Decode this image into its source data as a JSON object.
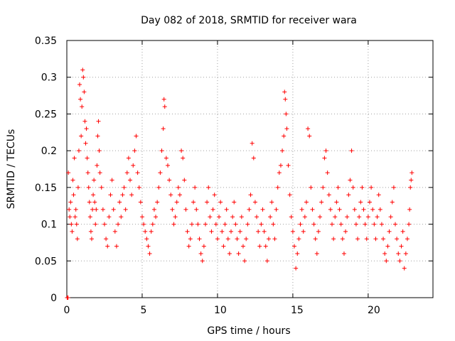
{
  "chart_data": {
    "type": "scatter",
    "title": "Day 082 of 2018, SRMTID for receiver wara",
    "xlabel": "GPS time / hours",
    "ylabel": "SRMTID / TECUs",
    "xlim": [
      0,
      24.3
    ],
    "ylim": [
      0,
      0.35
    ],
    "xticks": [
      0,
      5,
      10,
      15,
      20
    ],
    "xtick_labels": [
      "0",
      "5",
      "10",
      "15",
      "20"
    ],
    "yticks": [
      0,
      0.05,
      0.1,
      0.15,
      0.2,
      0.25,
      0.3,
      0.35
    ],
    "ytick_labels": [
      "0",
      "0.05",
      "0.1",
      "0.15",
      "0.2",
      "0.25",
      "0.3",
      "0.35"
    ],
    "grid": true,
    "marker": "+",
    "color": "#ff0000",
    "series": [
      {
        "name": "SRMTID",
        "points": [
          [
            0.02,
            0.0
          ],
          [
            0.05,
            0.0
          ],
          [
            0.08,
            0.0
          ],
          [
            0.1,
            0.17
          ],
          [
            0.15,
            0.12
          ],
          [
            0.2,
            0.11
          ],
          [
            0.25,
            0.13
          ],
          [
            0.3,
            0.1
          ],
          [
            0.35,
            0.09
          ],
          [
            0.4,
            0.16
          ],
          [
            0.45,
            0.14
          ],
          [
            0.5,
            0.19
          ],
          [
            0.55,
            0.11
          ],
          [
            0.6,
            0.12
          ],
          [
            0.65,
            0.1
          ],
          [
            0.7,
            0.08
          ],
          [
            0.75,
            0.15
          ],
          [
            0.8,
            0.2
          ],
          [
            0.85,
            0.29
          ],
          [
            0.9,
            0.27
          ],
          [
            0.95,
            0.22
          ],
          [
            1.0,
            0.26
          ],
          [
            1.05,
            0.31
          ],
          [
            1.1,
            0.3
          ],
          [
            1.15,
            0.28
          ],
          [
            1.2,
            0.24
          ],
          [
            1.25,
            0.21
          ],
          [
            1.3,
            0.23
          ],
          [
            1.35,
            0.19
          ],
          [
            1.4,
            0.17
          ],
          [
            1.45,
            0.15
          ],
          [
            1.5,
            0.13
          ],
          [
            1.55,
            0.11
          ],
          [
            1.6,
            0.09
          ],
          [
            1.65,
            0.08
          ],
          [
            1.7,
            0.12
          ],
          [
            1.75,
            0.14
          ],
          [
            1.8,
            0.16
          ],
          [
            1.85,
            0.13
          ],
          [
            1.9,
            0.1
          ],
          [
            1.95,
            0.12
          ],
          [
            2.0,
            0.18
          ],
          [
            2.05,
            0.22
          ],
          [
            2.1,
            0.24
          ],
          [
            2.15,
            0.2
          ],
          [
            2.2,
            0.17
          ],
          [
            2.3,
            0.15
          ],
          [
            2.4,
            0.12
          ],
          [
            2.5,
            0.1
          ],
          [
            2.6,
            0.08
          ],
          [
            2.7,
            0.07
          ],
          [
            2.8,
            0.11
          ],
          [
            2.9,
            0.14
          ],
          [
            3.0,
            0.16
          ],
          [
            3.1,
            0.12
          ],
          [
            3.2,
            0.09
          ],
          [
            3.3,
            0.07
          ],
          [
            3.4,
            0.1
          ],
          [
            3.5,
            0.13
          ],
          [
            3.6,
            0.11
          ],
          [
            3.7,
            0.14
          ],
          [
            3.8,
            0.15
          ],
          [
            3.9,
            0.12
          ],
          [
            4.0,
            0.17
          ],
          [
            4.1,
            0.19
          ],
          [
            4.2,
            0.16
          ],
          [
            4.3,
            0.14
          ],
          [
            4.4,
            0.18
          ],
          [
            4.5,
            0.2
          ],
          [
            4.6,
            0.22
          ],
          [
            4.7,
            0.17
          ],
          [
            4.8,
            0.15
          ],
          [
            4.9,
            0.13
          ],
          [
            5.0,
            0.11
          ],
          [
            5.1,
            0.1
          ],
          [
            5.2,
            0.09
          ],
          [
            5.3,
            0.08
          ],
          [
            5.4,
            0.07
          ],
          [
            5.5,
            0.06
          ],
          [
            5.6,
            0.09
          ],
          [
            5.7,
            0.1
          ],
          [
            5.8,
            0.12
          ],
          [
            5.9,
            0.11
          ],
          [
            6.0,
            0.13
          ],
          [
            6.1,
            0.15
          ],
          [
            6.2,
            0.17
          ],
          [
            6.3,
            0.2
          ],
          [
            6.4,
            0.23
          ],
          [
            6.45,
            0.27
          ],
          [
            6.5,
            0.26
          ],
          [
            6.6,
            0.19
          ],
          [
            6.7,
            0.18
          ],
          [
            6.8,
            0.16
          ],
          [
            6.9,
            0.14
          ],
          [
            7.0,
            0.12
          ],
          [
            7.1,
            0.1
          ],
          [
            7.2,
            0.11
          ],
          [
            7.3,
            0.13
          ],
          [
            7.4,
            0.15
          ],
          [
            7.5,
            0.14
          ],
          [
            7.6,
            0.2
          ],
          [
            7.7,
            0.19
          ],
          [
            7.8,
            0.16
          ],
          [
            7.9,
            0.12
          ],
          [
            8.0,
            0.09
          ],
          [
            8.1,
            0.07
          ],
          [
            8.2,
            0.08
          ],
          [
            8.3,
            0.1
          ],
          [
            8.4,
            0.13
          ],
          [
            8.5,
            0.15
          ],
          [
            8.6,
            0.12
          ],
          [
            8.7,
            0.1
          ],
          [
            8.8,
            0.08
          ],
          [
            8.9,
            0.06
          ],
          [
            9.0,
            0.05
          ],
          [
            9.1,
            0.07
          ],
          [
            9.2,
            0.1
          ],
          [
            9.3,
            0.13
          ],
          [
            9.4,
            0.15
          ],
          [
            9.5,
            0.11
          ],
          [
            9.6,
            0.09
          ],
          [
            9.7,
            0.12
          ],
          [
            9.8,
            0.14
          ],
          [
            9.9,
            0.1
          ],
          [
            10.0,
            0.08
          ],
          [
            10.1,
            0.11
          ],
          [
            10.2,
            0.13
          ],
          [
            10.3,
            0.09
          ],
          [
            10.4,
            0.07
          ],
          [
            10.5,
            0.1
          ],
          [
            10.6,
            0.12
          ],
          [
            10.7,
            0.08
          ],
          [
            10.8,
            0.06
          ],
          [
            10.9,
            0.09
          ],
          [
            11.0,
            0.11
          ],
          [
            11.1,
            0.13
          ],
          [
            11.2,
            0.1
          ],
          [
            11.3,
            0.08
          ],
          [
            11.4,
            0.06
          ],
          [
            11.5,
            0.09
          ],
          [
            11.6,
            0.11
          ],
          [
            11.7,
            0.07
          ],
          [
            11.8,
            0.05
          ],
          [
            11.9,
            0.08
          ],
          [
            12.0,
            0.1
          ],
          [
            12.1,
            0.12
          ],
          [
            12.2,
            0.14
          ],
          [
            12.3,
            0.21
          ],
          [
            12.4,
            0.19
          ],
          [
            12.5,
            0.13
          ],
          [
            12.6,
            0.11
          ],
          [
            12.7,
            0.09
          ],
          [
            12.8,
            0.07
          ],
          [
            12.9,
            0.1
          ],
          [
            13.0,
            0.12
          ],
          [
            13.1,
            0.09
          ],
          [
            13.2,
            0.07
          ],
          [
            13.3,
            0.05
          ],
          [
            13.4,
            0.08
          ],
          [
            13.5,
            0.11
          ],
          [
            13.6,
            0.13
          ],
          [
            13.7,
            0.1
          ],
          [
            13.8,
            0.08
          ],
          [
            13.9,
            0.12
          ],
          [
            14.0,
            0.15
          ],
          [
            14.1,
            0.17
          ],
          [
            14.2,
            0.18
          ],
          [
            14.3,
            0.2
          ],
          [
            14.4,
            0.22
          ],
          [
            14.45,
            0.28
          ],
          [
            14.5,
            0.27
          ],
          [
            14.55,
            0.25
          ],
          [
            14.6,
            0.23
          ],
          [
            14.7,
            0.18
          ],
          [
            14.8,
            0.14
          ],
          [
            14.9,
            0.11
          ],
          [
            15.0,
            0.09
          ],
          [
            15.1,
            0.07
          ],
          [
            15.2,
            0.04
          ],
          [
            15.3,
            0.06
          ],
          [
            15.4,
            0.08
          ],
          [
            15.5,
            0.1
          ],
          [
            15.6,
            0.12
          ],
          [
            15.7,
            0.09
          ],
          [
            15.8,
            0.11
          ],
          [
            15.9,
            0.13
          ],
          [
            16.0,
            0.23
          ],
          [
            16.1,
            0.22
          ],
          [
            16.2,
            0.15
          ],
          [
            16.3,
            0.12
          ],
          [
            16.4,
            0.1
          ],
          [
            16.5,
            0.08
          ],
          [
            16.6,
            0.06
          ],
          [
            16.7,
            0.09
          ],
          [
            16.8,
            0.11
          ],
          [
            16.9,
            0.13
          ],
          [
            17.0,
            0.15
          ],
          [
            17.1,
            0.19
          ],
          [
            17.2,
            0.2
          ],
          [
            17.3,
            0.17
          ],
          [
            17.4,
            0.14
          ],
          [
            17.5,
            0.12
          ],
          [
            17.6,
            0.1
          ],
          [
            17.7,
            0.08
          ],
          [
            17.8,
            0.11
          ],
          [
            17.9,
            0.13
          ],
          [
            18.0,
            0.15
          ],
          [
            18.1,
            0.12
          ],
          [
            18.2,
            0.1
          ],
          [
            18.3,
            0.08
          ],
          [
            18.4,
            0.06
          ],
          [
            18.5,
            0.09
          ],
          [
            18.6,
            0.11
          ],
          [
            18.7,
            0.14
          ],
          [
            18.8,
            0.16
          ],
          [
            18.9,
            0.2
          ],
          [
            19.0,
            0.15
          ],
          [
            19.1,
            0.12
          ],
          [
            19.2,
            0.1
          ],
          [
            19.3,
            0.08
          ],
          [
            19.4,
            0.11
          ],
          [
            19.5,
            0.13
          ],
          [
            19.6,
            0.15
          ],
          [
            19.7,
            0.12
          ],
          [
            19.8,
            0.1
          ],
          [
            19.9,
            0.08
          ],
          [
            20.0,
            0.11
          ],
          [
            20.1,
            0.13
          ],
          [
            20.2,
            0.15
          ],
          [
            20.3,
            0.12
          ],
          [
            20.4,
            0.1
          ],
          [
            20.5,
            0.08
          ],
          [
            20.6,
            0.11
          ],
          [
            20.7,
            0.14
          ],
          [
            20.8,
            0.12
          ],
          [
            20.9,
            0.1
          ],
          [
            21.0,
            0.08
          ],
          [
            21.1,
            0.06
          ],
          [
            21.2,
            0.05
          ],
          [
            21.3,
            0.07
          ],
          [
            21.4,
            0.09
          ],
          [
            21.5,
            0.11
          ],
          [
            21.6,
            0.13
          ],
          [
            21.7,
            0.15
          ],
          [
            21.8,
            0.1
          ],
          [
            21.9,
            0.08
          ],
          [
            22.0,
            0.06
          ],
          [
            22.1,
            0.05
          ],
          [
            22.2,
            0.07
          ],
          [
            22.3,
            0.09
          ],
          [
            22.4,
            0.04
          ],
          [
            22.5,
            0.06
          ],
          [
            22.6,
            0.08
          ],
          [
            22.7,
            0.1
          ],
          [
            22.75,
            0.12
          ],
          [
            22.8,
            0.15
          ],
          [
            22.85,
            0.16
          ],
          [
            22.9,
            0.17
          ]
        ]
      }
    ]
  }
}
